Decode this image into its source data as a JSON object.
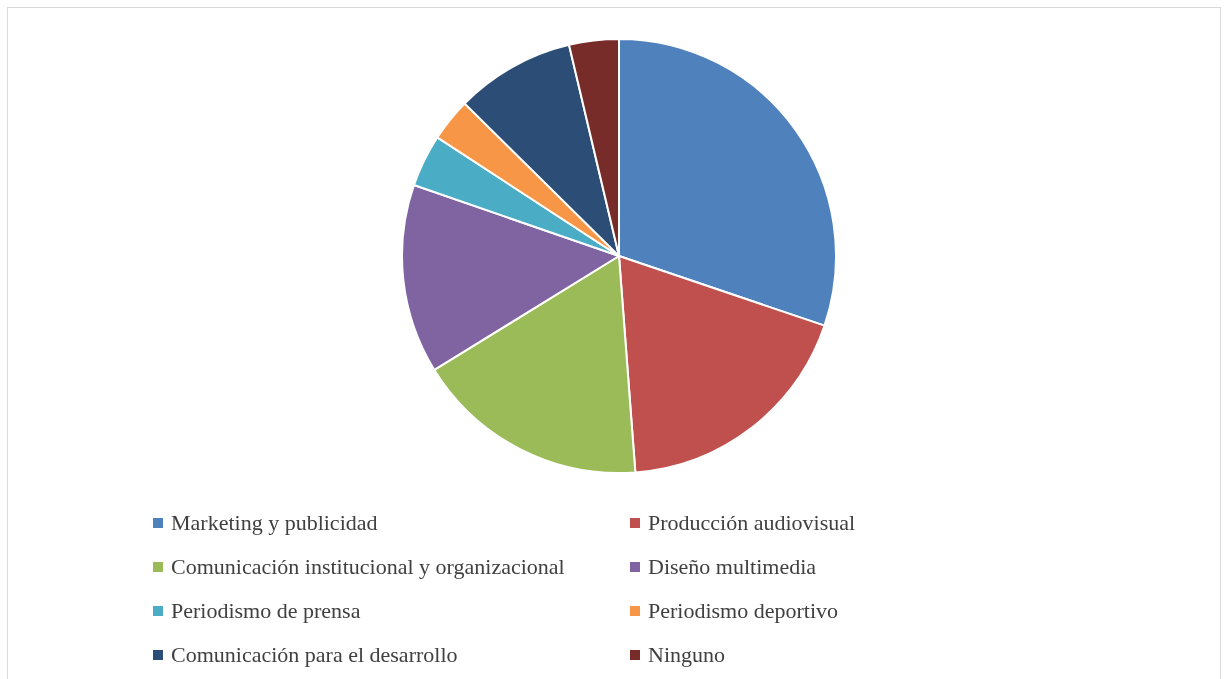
{
  "chart_data": {
    "type": "pie",
    "categories": [
      "Marketing y publicidad",
      "Producción audiovisual",
      "Comunicación institucional y organizacional",
      "Diseño multimedia",
      "Periodismo de prensa",
      "Periodismo deportivo",
      "Comunicación para el desarrollo",
      "Ninguno"
    ],
    "values": [
      30.2,
      18.6,
      17.4,
      14.1,
      3.9,
      3.2,
      8.9,
      3.7
    ],
    "colors": [
      "#4f81bd",
      "#c0504d",
      "#9bbb59",
      "#8064a2",
      "#4bacc6",
      "#f79646",
      "#2c4d75",
      "#772c2a"
    ],
    "legend": "bottom"
  }
}
